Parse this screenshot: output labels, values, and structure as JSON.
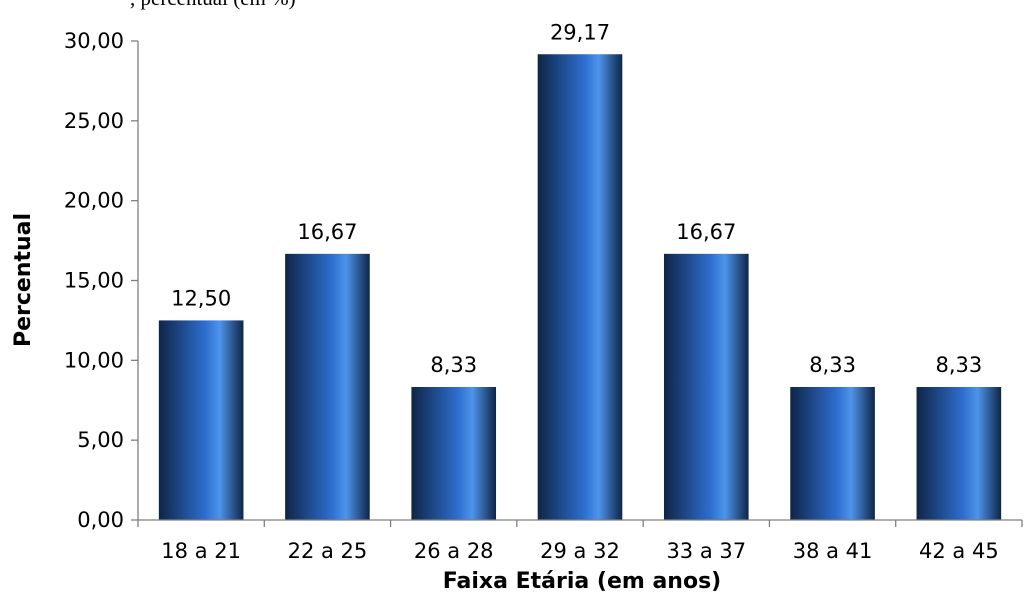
{
  "header_fragment": ", percentual (em %)",
  "colors": {
    "bar_dark": "#0f2547",
    "bar_mid": "#2e6ecf",
    "bar_light": "#4e94ea",
    "axis": "#7f7f7f"
  },
  "chart_data": {
    "type": "bar",
    "title": "",
    "xlabel": "Faixa Etária (em anos)",
    "ylabel": "Percentual",
    "categories": [
      "18 a 21",
      "22 a 25",
      "26 a 28",
      "29 a 32",
      "33 a 37",
      "38 a 41",
      "42 a 45"
    ],
    "values": [
      12.5,
      16.67,
      8.33,
      29.17,
      16.67,
      8.33,
      8.33
    ],
    "value_labels": [
      "12,50",
      "16,67",
      "8,33",
      "29,17",
      "16,67",
      "8,33",
      "8,33"
    ],
    "ylim": [
      0,
      30
    ],
    "yticks": [
      0,
      5,
      10,
      15,
      20,
      25,
      30
    ],
    "ytick_labels": [
      "0,00",
      "5,00",
      "10,00",
      "15,00",
      "20,00",
      "25,00",
      "30,00"
    ],
    "grid": false,
    "legend": "none"
  }
}
